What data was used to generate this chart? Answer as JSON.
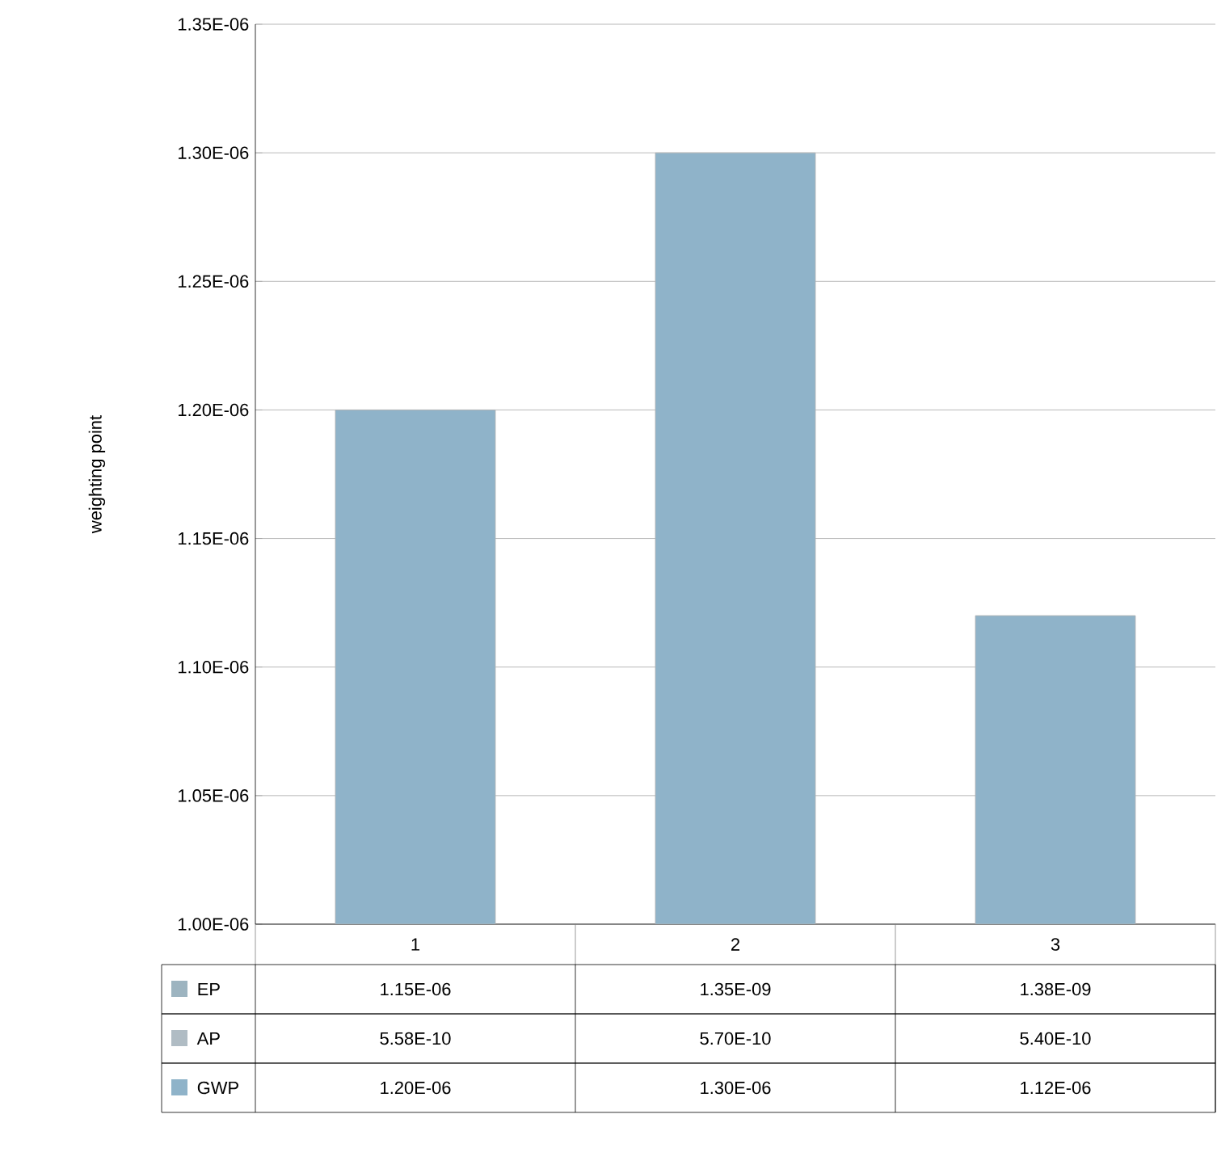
{
  "chart_data": {
    "type": "bar",
    "ylabel": "weighting point",
    "categories": [
      "1",
      "2",
      "3"
    ],
    "series": [
      {
        "name": "EP",
        "color": "#9db4c0",
        "values": [
          null,
          null,
          null
        ],
        "value_labels": [
          "1.15E-06",
          "1.35E-09",
          "1.38E-09"
        ]
      },
      {
        "name": "AP",
        "color": "#b0bcc4",
        "values": [
          null,
          null,
          null
        ],
        "value_labels": [
          "5.58E-10",
          "5.70E-10",
          "5.40E-10"
        ]
      },
      {
        "name": "GWP",
        "color": "#8fb3c9",
        "values": [
          1.2e-06,
          1.3e-06,
          1.12e-06
        ],
        "value_labels": [
          "1.20E-06",
          "1.30E-06",
          "1.12E-06"
        ]
      }
    ],
    "ylim": [
      1e-06,
      1.35e-06
    ],
    "yticks": [
      {
        "value": 1e-06,
        "label": "1.00E-06"
      },
      {
        "value": 1.05e-06,
        "label": "1.05E-06"
      },
      {
        "value": 1.1e-06,
        "label": "1.10E-06"
      },
      {
        "value": 1.15e-06,
        "label": "1.15E-06"
      },
      {
        "value": 1.2e-06,
        "label": "1.20E-06"
      },
      {
        "value": 1.25e-06,
        "label": "1.25E-06"
      },
      {
        "value": 1.3e-06,
        "label": "1.30E-06"
      },
      {
        "value": 1.35e-06,
        "label": "1.35E-06"
      }
    ],
    "grid": "y",
    "legend": "bottom"
  }
}
